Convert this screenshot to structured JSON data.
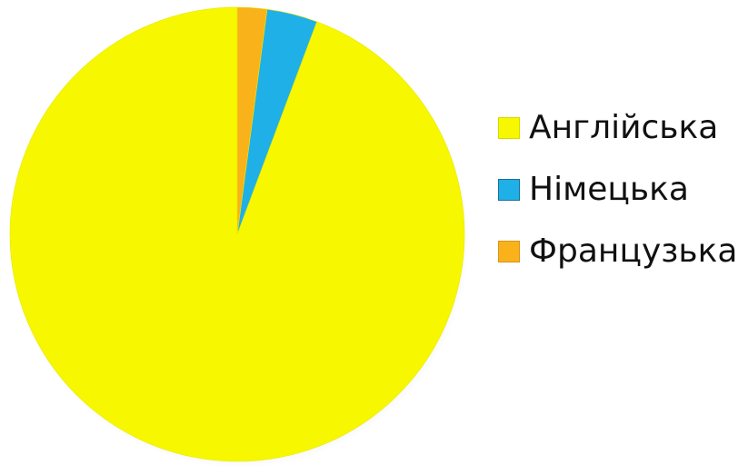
{
  "chart_data": {
    "type": "pie",
    "categories": [
      "Англійська",
      "Німецька",
      "Французька"
    ],
    "values": [
      94.3,
      3.6,
      2.1
    ],
    "colors": [
      "#f7f700",
      "#1fb0e8",
      "#f9b21a"
    ],
    "legend_position": "right"
  }
}
